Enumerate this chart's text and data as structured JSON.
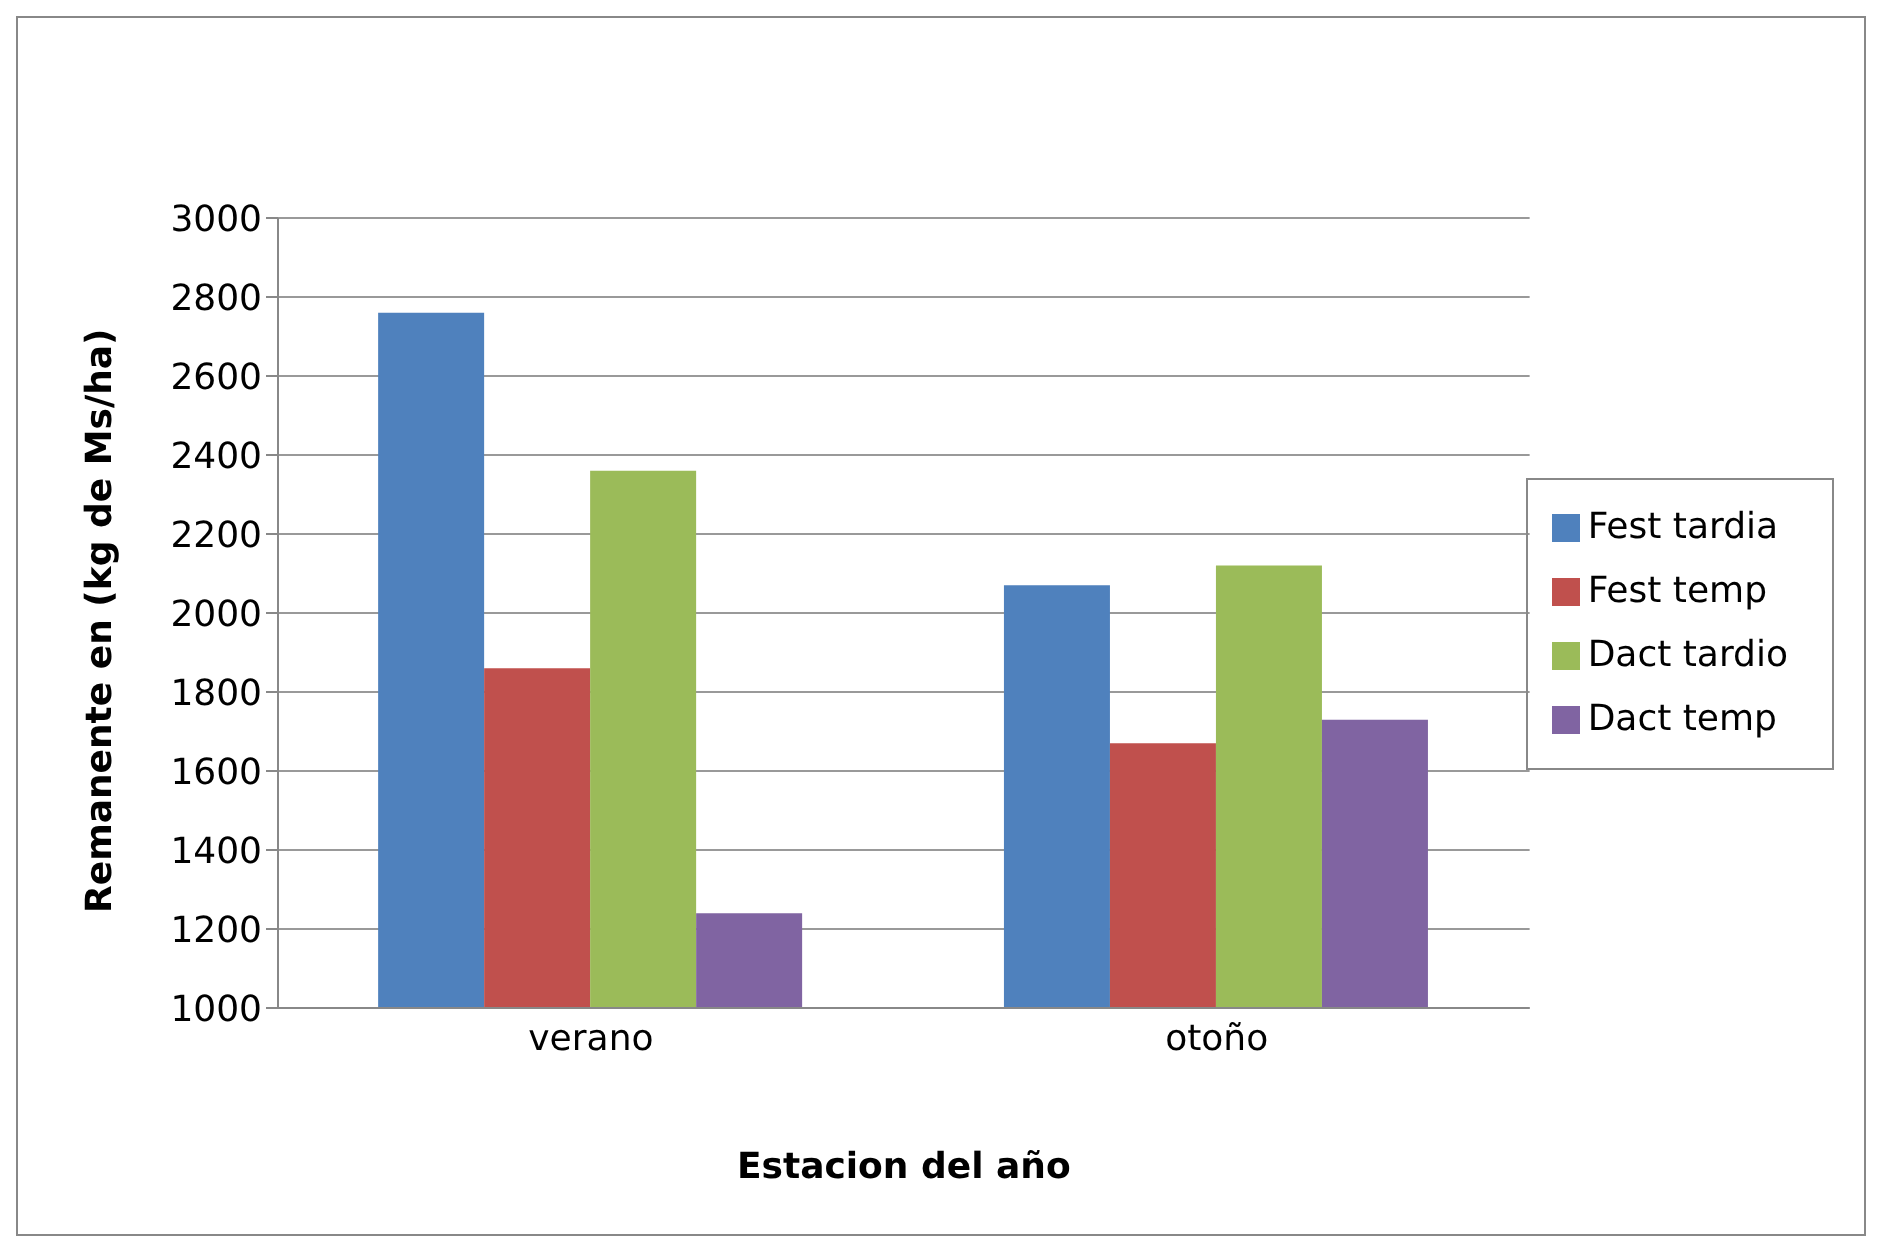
{
  "chart_data": {
    "type": "bar",
    "xlabel": "Estacion del año",
    "ylabel": "Remanente en (kg de Ms/ha)",
    "categories": [
      "verano",
      "otoño"
    ],
    "series": [
      {
        "name": "Fest tardia",
        "color": "#4f81bd",
        "values": [
          2760,
          2070
        ]
      },
      {
        "name": "Fest temp",
        "color": "#c0504d",
        "values": [
          1860,
          1670
        ]
      },
      {
        "name": "Dact tardio",
        "color": "#9bbb59",
        "values": [
          2360,
          2120
        ]
      },
      {
        "name": "Dact temp",
        "color": "#8064a2",
        "values": [
          1240,
          1730
        ]
      }
    ],
    "ylim": [
      1000,
      3000
    ],
    "yticks": [
      1000,
      1200,
      1400,
      1600,
      1800,
      2000,
      2200,
      2400,
      2600,
      2800,
      3000
    ],
    "grid": "y",
    "legend": "right"
  }
}
